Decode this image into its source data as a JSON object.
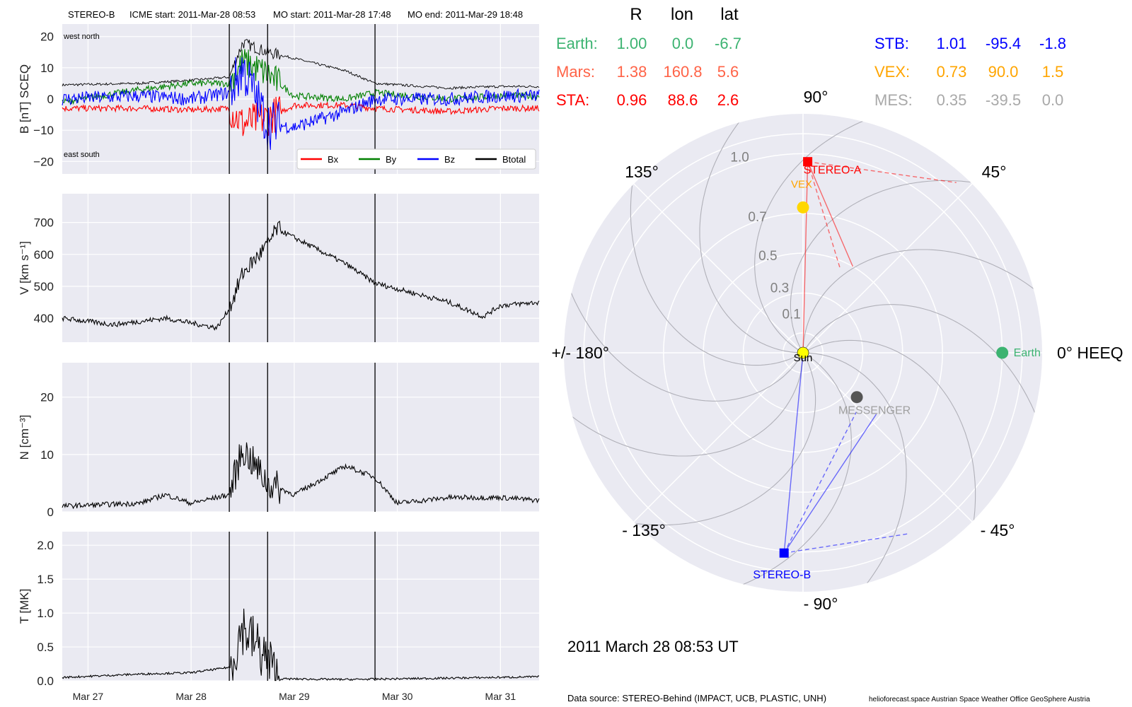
{
  "header": {
    "spacecraft": "STEREO-B",
    "icme_start": "ICME start: 2011-Mar-28 08:53",
    "mo_start": "MO start: 2011-Mar-28 17:48",
    "mo_end": "MO end: 2011-Mar-29 18:48"
  },
  "footer": {
    "timestamp": "2011 March 28  08:53 UT",
    "data_source": "Data source: STEREO-Behind (IMPACT, UCB, PLASTIC, UNH)",
    "credits": "helioforecast.space   Austrian Space Weather Office   GeoSphere Austria"
  },
  "colors": {
    "bx": "#ff0000",
    "by": "#008000",
    "bz": "#0000ff",
    "btotal": "#000000",
    "earth": "#3cb371",
    "mars": "#ff6347",
    "sta": "#ff0000",
    "stb": "#0000ff",
    "vex": "#ffa500",
    "mes": "#a9a9a9",
    "panel_bg": "#eaeaf2",
    "grid": "#ffffff"
  },
  "positions_table": {
    "headers": [
      "R",
      "lon",
      "lat"
    ],
    "rows": [
      {
        "name": "Earth:",
        "R": "1.00",
        "lon": "0.0",
        "lat": "-6.7",
        "color": "#3cb371"
      },
      {
        "name": "Mars:",
        "R": "1.38",
        "lon": "160.8",
        "lat": "5.6",
        "color": "#ff6347"
      },
      {
        "name": "STA:",
        "R": "0.96",
        "lon": "88.6",
        "lat": "2.6",
        "color": "#ff0000"
      },
      {
        "name": "STB:",
        "R": "1.01",
        "lon": "-95.4",
        "lat": "-1.8",
        "color": "#0000ff"
      },
      {
        "name": "VEX:",
        "R": "0.73",
        "lon": "90.0",
        "lat": "1.5",
        "color": "#ffa500"
      },
      {
        "name": "MES:",
        "R": "0.35",
        "lon": "-39.5",
        "lat": "0.0",
        "color": "#a9a9a9"
      }
    ]
  },
  "chart_data": [
    {
      "type": "line",
      "panel": "B",
      "ylabel": "B [nT] SCEQ",
      "ylim": [
        -24,
        24
      ],
      "yticks": [
        "20",
        "10",
        "0",
        "−10",
        "−20"
      ],
      "ytick_values": [
        20,
        10,
        0,
        -10,
        -20
      ],
      "annotations": {
        "top": "west    north",
        "bottom": "east    south"
      },
      "legend": [
        "Bx",
        "By",
        "Bz",
        "Btotal"
      ],
      "legend_placement": "bottom-right",
      "x_range_days": [
        "2011-03-26T18:00",
        "2011-03-31T09:00"
      ],
      "vertical_lines": [
        "2011-03-28T08:53",
        "2011-03-28T17:48",
        "2011-03-29T18:48"
      ],
      "series": [
        {
          "name": "Btotal",
          "x": [
            "2011-03-26T18:00",
            "2011-03-27T12:00",
            "2011-03-28T00:00",
            "2011-03-28T08:53",
            "2011-03-28T12:00",
            "2011-03-28T17:48",
            "2011-03-29T00:00",
            "2011-03-29T12:00",
            "2011-03-29T18:48",
            "2011-03-30T12:00",
            "2011-03-31T00:00",
            "2011-03-31T09:00"
          ],
          "y": [
            4.5,
            5,
            6,
            7,
            18,
            15,
            13,
            9,
            5,
            3.5,
            4,
            4
          ]
        },
        {
          "name": "Bx",
          "x": [
            "2011-03-26T18:00",
            "2011-03-27T12:00",
            "2011-03-28T00:00",
            "2011-03-28T08:53",
            "2011-03-28T12:00",
            "2011-03-28T17:48",
            "2011-03-29T00:00",
            "2011-03-29T12:00",
            "2011-03-29T18:48",
            "2011-03-30T12:00",
            "2011-03-31T00:00",
            "2011-03-31T09:00"
          ],
          "y": [
            -3,
            -3,
            -3.5,
            -3,
            -8,
            -6,
            -2,
            -2,
            -3,
            -4,
            -3,
            -3
          ]
        },
        {
          "name": "By",
          "x": [
            "2011-03-26T18:00",
            "2011-03-27T12:00",
            "2011-03-28T00:00",
            "2011-03-28T08:53",
            "2011-03-28T12:00",
            "2011-03-28T17:48",
            "2011-03-29T00:00",
            "2011-03-29T12:00",
            "2011-03-29T18:48",
            "2011-03-30T12:00",
            "2011-03-31T00:00",
            "2011-03-31T09:00"
          ],
          "y": [
            -1,
            3,
            5,
            5,
            12,
            8,
            1,
            0,
            2,
            0,
            1,
            1
          ]
        },
        {
          "name": "Bz",
          "x": [
            "2011-03-26T18:00",
            "2011-03-27T12:00",
            "2011-03-28T00:00",
            "2011-03-28T08:53",
            "2011-03-28T12:00",
            "2011-03-28T17:48",
            "2011-03-29T00:00",
            "2011-03-29T12:00",
            "2011-03-29T18:48",
            "2011-03-30T12:00",
            "2011-03-31T00:00",
            "2011-03-31T09:00"
          ],
          "y": [
            0,
            1,
            0,
            2,
            10,
            -8,
            -9,
            -4,
            0,
            0,
            1,
            1
          ]
        }
      ]
    },
    {
      "type": "line",
      "panel": "V",
      "ylabel": "V [km s⁻¹]",
      "ylim": [
        325,
        790
      ],
      "yticks": [
        "700",
        "600",
        "500",
        "400"
      ],
      "ytick_values": [
        700,
        600,
        500,
        400
      ],
      "series": [
        {
          "name": "V",
          "x": [
            "2011-03-26T18:00",
            "2011-03-27T06:00",
            "2011-03-27T18:00",
            "2011-03-28T06:00",
            "2011-03-28T08:53",
            "2011-03-28T12:00",
            "2011-03-28T17:48",
            "2011-03-28T20:00",
            "2011-03-29T12:00",
            "2011-03-29T18:48",
            "2011-03-30T12:00",
            "2011-03-30T20:00",
            "2011-03-31T00:00",
            "2011-03-31T09:00"
          ],
          "y": [
            400,
            380,
            400,
            370,
            430,
            540,
            630,
            680,
            570,
            510,
            450,
            405,
            440,
            450
          ]
        }
      ]
    },
    {
      "type": "line",
      "panel": "N",
      "ylabel": "N [cm⁻³]",
      "ylim": [
        0,
        26
      ],
      "yticks": [
        "20",
        "10",
        "0"
      ],
      "ytick_values": [
        20,
        10,
        0
      ],
      "series": [
        {
          "name": "N",
          "x": [
            "2011-03-26T18:00",
            "2011-03-27T12:00",
            "2011-03-27T18:00",
            "2011-03-28T00:00",
            "2011-03-28T08:53",
            "2011-03-28T12:00",
            "2011-03-28T17:48",
            "2011-03-29T00:00",
            "2011-03-29T12:00",
            "2011-03-29T18:48",
            "2011-03-30T00:00",
            "2011-03-30T12:00",
            "2011-03-31T00:00",
            "2011-03-31T09:00"
          ],
          "y": [
            1,
            1.5,
            3,
            1.5,
            3,
            11,
            5,
            3,
            8,
            6,
            1.5,
            2.5,
            2.5,
            2
          ]
        }
      ]
    },
    {
      "type": "line",
      "panel": "T",
      "ylabel": "T [MK]",
      "ylim": [
        0,
        2.2
      ],
      "yticks": [
        "2.0",
        "1.5",
        "1.0",
        "0.5",
        "0.0"
      ],
      "ytick_values": [
        2.0,
        1.5,
        1.0,
        0.5,
        0.0
      ],
      "xticks": [
        "Mar 27",
        "Mar 28",
        "Mar 29",
        "Mar 30",
        "Mar 31"
      ],
      "xtick_values": [
        "2011-03-27",
        "2011-03-28",
        "2011-03-29",
        "2011-03-30",
        "2011-03-31"
      ],
      "series": [
        {
          "name": "T",
          "x": [
            "2011-03-26T18:00",
            "2011-03-27T12:00",
            "2011-03-28T00:00",
            "2011-03-28T08:53",
            "2011-03-28T12:00",
            "2011-03-28T17:48",
            "2011-03-28T20:00",
            "2011-03-29T12:00",
            "2011-03-30T12:00",
            "2011-03-31T09:00"
          ],
          "y": [
            0.05,
            0.1,
            0.12,
            0.2,
            0.8,
            0.3,
            0.03,
            0.02,
            0.04,
            0.06
          ]
        }
      ]
    },
    {
      "type": "scatter",
      "panel": "polar-heeq",
      "angle_labels": [
        "90°",
        "45°",
        "0° HEEQ",
        "- 45°",
        "- 90°",
        "- 135°",
        "+/- 180°",
        "135°"
      ],
      "angle_values_deg": [
        90,
        45,
        0,
        -45,
        -90,
        -135,
        180,
        135
      ],
      "radial_ticks": [
        "0.1",
        "0.3",
        "0.5",
        "0.7",
        "1.0"
      ],
      "radial_tick_values": [
        0.1,
        0.3,
        0.5,
        0.7,
        1.0
      ],
      "r_max": 1.2,
      "points": [
        {
          "label": "Sun",
          "r": 0.0,
          "lon": 0.0,
          "color": "#ffff00",
          "marker": "circle"
        },
        {
          "label": "Earth",
          "r": 1.0,
          "lon": 0.0,
          "color": "#3cb371",
          "marker": "circle"
        },
        {
          "label": "STEREO-A",
          "r": 0.96,
          "lon": 88.6,
          "color": "#ff0000",
          "marker": "square"
        },
        {
          "label": "STEREO-B",
          "r": 1.01,
          "lon": -95.4,
          "color": "#0000ff",
          "marker": "square"
        },
        {
          "label": "VEX",
          "r": 0.73,
          "lon": 90.0,
          "color": "#ffd700",
          "marker": "circle"
        },
        {
          "label": "MESSENGER",
          "r": 0.35,
          "lon": -39.5,
          "color": "#555555",
          "marker": "circle"
        }
      ]
    }
  ]
}
